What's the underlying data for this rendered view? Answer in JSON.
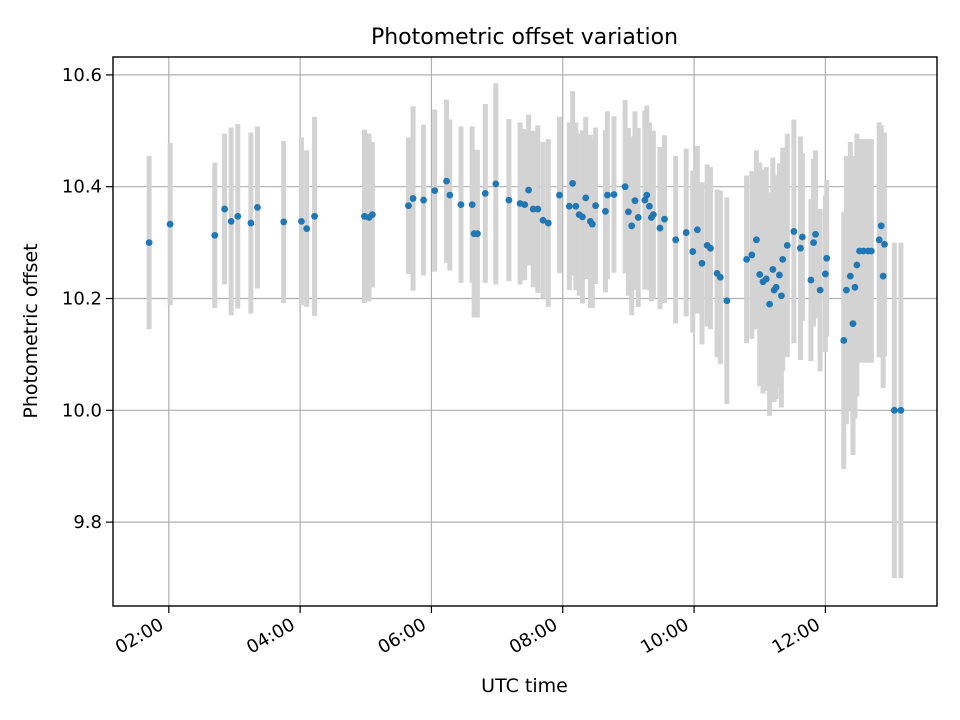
{
  "chart_data": {
    "type": "scatter",
    "title": "Photometric offset variation",
    "xlabel": "UTC time",
    "ylabel": "Photometric offset",
    "x_unit": "hours UTC",
    "xlim": [
      1.15,
      13.7
    ],
    "ylim": [
      9.65,
      10.632
    ],
    "x_ticks": [
      {
        "value": 2,
        "label": "02:00"
      },
      {
        "value": 4,
        "label": "04:00"
      },
      {
        "value": 6,
        "label": "06:00"
      },
      {
        "value": 8,
        "label": "08:00"
      },
      {
        "value": 10,
        "label": "10:00"
      },
      {
        "value": 12,
        "label": "12:00"
      }
    ],
    "y_ticks": [
      {
        "value": 9.8,
        "label": "9.8"
      },
      {
        "value": 10.0,
        "label": "10.0"
      },
      {
        "value": 10.2,
        "label": "10.2"
      },
      {
        "value": 10.4,
        "label": "10.4"
      },
      {
        "value": 10.6,
        "label": "10.6"
      }
    ],
    "grid": true,
    "colors": {
      "marker": "#1f77b4",
      "errorbar": "#d3d3d3",
      "grid": "#b0b0b0"
    },
    "points": [
      [
        1.7,
        10.3,
        0.155
      ],
      [
        2.02,
        10.333,
        0.145
      ],
      [
        2.7,
        10.313,
        0.13
      ],
      [
        2.85,
        10.36,
        0.135
      ],
      [
        2.95,
        10.338,
        0.168
      ],
      [
        3.05,
        10.347,
        0.165
      ],
      [
        3.25,
        10.335,
        0.162
      ],
      [
        3.35,
        10.363,
        0.145
      ],
      [
        3.75,
        10.337,
        0.145
      ],
      [
        4.02,
        10.338,
        0.15
      ],
      [
        4.1,
        10.325,
        0.14
      ],
      [
        4.22,
        10.347,
        0.178
      ],
      [
        4.98,
        10.347,
        0.155
      ],
      [
        5.05,
        10.345,
        0.15
      ],
      [
        5.1,
        10.35,
        0.13
      ],
      [
        5.65,
        10.366,
        0.122
      ],
      [
        5.72,
        10.379,
        0.165
      ],
      [
        5.88,
        10.376,
        0.135
      ],
      [
        6.05,
        10.393,
        0.145
      ],
      [
        6.23,
        10.41,
        0.146
      ],
      [
        6.28,
        10.385,
        0.135
      ],
      [
        6.45,
        10.368,
        0.14
      ],
      [
        6.62,
        10.368,
        0.14
      ],
      [
        6.65,
        10.316,
        0.15
      ],
      [
        6.7,
        10.316,
        0.15
      ],
      [
        6.82,
        10.388,
        0.16
      ],
      [
        6.98,
        10.405,
        0.18
      ],
      [
        7.18,
        10.376,
        0.145
      ],
      [
        7.35,
        10.37,
        0.145
      ],
      [
        7.42,
        10.368,
        0.135
      ],
      [
        7.48,
        10.394,
        0.135
      ],
      [
        7.55,
        10.36,
        0.14
      ],
      [
        7.62,
        10.36,
        0.15
      ],
      [
        7.7,
        10.34,
        0.14
      ],
      [
        7.78,
        10.335,
        0.15
      ],
      [
        7.95,
        10.385,
        0.14
      ],
      [
        8.1,
        10.365,
        0.15
      ],
      [
        8.15,
        10.406,
        0.165
      ],
      [
        8.2,
        10.365,
        0.15
      ],
      [
        8.25,
        10.35,
        0.145
      ],
      [
        8.3,
        10.346,
        0.155
      ],
      [
        8.35,
        10.38,
        0.145
      ],
      [
        8.42,
        10.338,
        0.155
      ],
      [
        8.45,
        10.333,
        0.15
      ],
      [
        8.5,
        10.366,
        0.14
      ],
      [
        8.65,
        10.356,
        0.145
      ],
      [
        8.68,
        10.385,
        0.15
      ],
      [
        8.78,
        10.386,
        0.14
      ],
      [
        8.95,
        10.4,
        0.155
      ],
      [
        9.0,
        10.355,
        0.15
      ],
      [
        9.05,
        10.33,
        0.16
      ],
      [
        9.1,
        10.375,
        0.16
      ],
      [
        9.15,
        10.345,
        0.16
      ],
      [
        9.25,
        10.376,
        0.16
      ],
      [
        9.28,
        10.385,
        0.16
      ],
      [
        9.32,
        10.365,
        0.15
      ],
      [
        9.35,
        10.345,
        0.15
      ],
      [
        9.38,
        10.35,
        0.15
      ],
      [
        9.48,
        10.326,
        0.145
      ],
      [
        9.55,
        10.342,
        0.15
      ],
      [
        9.72,
        10.305,
        0.15
      ],
      [
        9.88,
        10.318,
        0.15
      ],
      [
        9.98,
        10.284,
        0.145
      ],
      [
        10.05,
        10.323,
        0.15
      ],
      [
        10.12,
        10.263,
        0.145
      ],
      [
        10.2,
        10.295,
        0.145
      ],
      [
        10.25,
        10.29,
        0.145
      ],
      [
        10.35,
        10.245,
        0.15
      ],
      [
        10.4,
        10.238,
        0.155
      ],
      [
        10.5,
        10.196,
        0.185
      ],
      [
        10.8,
        10.27,
        0.15
      ],
      [
        10.88,
        10.278,
        0.15
      ],
      [
        10.95,
        10.305,
        0.16
      ],
      [
        11.0,
        10.243,
        0.2
      ],
      [
        11.05,
        10.23,
        0.2
      ],
      [
        11.1,
        10.235,
        0.2
      ],
      [
        11.15,
        10.19,
        0.2
      ],
      [
        11.2,
        10.252,
        0.2
      ],
      [
        11.22,
        10.215,
        0.2
      ],
      [
        11.25,
        10.22,
        0.2
      ],
      [
        11.3,
        10.242,
        0.2
      ],
      [
        11.33,
        10.205,
        0.2
      ],
      [
        11.35,
        10.27,
        0.2
      ],
      [
        11.42,
        10.295,
        0.2
      ],
      [
        11.52,
        10.32,
        0.2
      ],
      [
        11.62,
        10.29,
        0.2
      ],
      [
        11.65,
        10.31,
        0.15
      ],
      [
        11.78,
        10.233,
        0.145
      ],
      [
        11.82,
        10.3,
        0.15
      ],
      [
        11.85,
        10.315,
        0.15
      ],
      [
        11.92,
        10.215,
        0.145
      ],
      [
        12.0,
        10.244,
        0.14
      ],
      [
        12.02,
        10.272,
        0.14
      ],
      [
        12.28,
        10.125,
        0.23
      ],
      [
        12.32,
        10.215,
        0.24
      ],
      [
        12.38,
        10.24,
        0.24
      ],
      [
        12.42,
        10.155,
        0.235
      ],
      [
        12.45,
        10.22,
        0.235
      ],
      [
        12.48,
        10.26,
        0.235
      ],
      [
        12.52,
        10.285,
        0.2
      ],
      [
        12.58,
        10.285,
        0.2
      ],
      [
        12.65,
        10.285,
        0.2
      ],
      [
        12.7,
        10.285,
        0.2
      ],
      [
        12.82,
        10.305,
        0.21
      ],
      [
        12.85,
        10.33,
        0.18
      ],
      [
        12.88,
        10.24,
        0.2
      ],
      [
        12.9,
        10.297,
        0.2
      ],
      [
        13.05,
        10.0,
        0.3
      ],
      [
        13.15,
        10.0,
        0.3
      ]
    ]
  }
}
